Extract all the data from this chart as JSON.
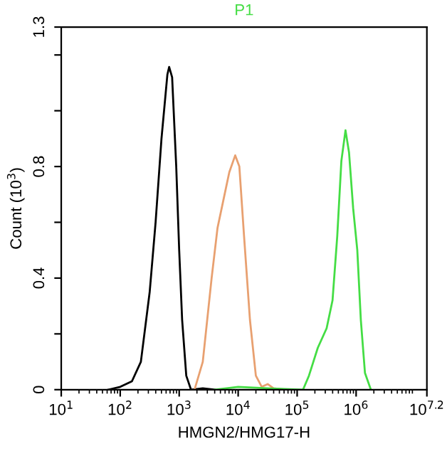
{
  "chart_data": {
    "type": "line",
    "title": "P1",
    "xlabel": "HMGN2/HMG17-H",
    "ylabel": "Count (10$^{3}$)",
    "log": "x",
    "xlim": [
      10,
      15848932
    ],
    "xticks": [
      {
        "value": 10,
        "label": "10$^{1}$"
      },
      {
        "value": 100,
        "label": "10$^{2}$"
      },
      {
        "value": 1000,
        "label": "10$^{3}$"
      },
      {
        "value": 10000,
        "label": "10$^{4}$"
      },
      {
        "value": 100000,
        "label": "10$^{5}$"
      },
      {
        "value": 1000000,
        "label": "10$^{6}$"
      },
      {
        "value": 15848932,
        "label": "10$^{7.2}$"
      }
    ],
    "ylim": [
      0,
      1.3
    ],
    "yticks": [
      0,
      {
        "value": 0.2,
        "label": null
      },
      0.4,
      {
        "value": 0.6,
        "label": null
      },
      0.8,
      {
        "value": 1.0,
        "label": null
      },
      {
        "value": 1.2,
        "label": null
      },
      1.3
    ],
    "grid": false,
    "marker": "none",
    "line_style": "solid",
    "series": [
      {
        "color": "#000000",
        "x": [
          63,
          100,
          158,
          224,
          316,
          398,
          501,
          631,
          676,
          759,
          891,
          1000,
          1122,
          1318,
          1585,
          2512,
          3981
        ],
        "values": [
          0,
          0.01,
          0.03,
          0.1,
          0.35,
          0.6,
          0.9,
          1.13,
          1.157,
          1.12,
          0.8,
          0.5,
          0.25,
          0.05,
          0,
          0.005,
          0
        ]
      },
      {
        "color": "#e8a070",
        "x": [
          1820,
          2512,
          3548,
          4467,
          5623,
          7079,
          8913,
          10471,
          12589,
          15849,
          19953,
          25119,
          31623,
          39811,
          63096
        ],
        "values": [
          0,
          0.1,
          0.4,
          0.58,
          0.68,
          0.78,
          0.84,
          0.8,
          0.55,
          0.25,
          0.05,
          0.01,
          0.02,
          0.005,
          0
        ]
      },
      {
        "color": "#44dd44",
        "x": [
          3981,
          10000,
          31623,
          125893,
          158489,
          223872,
          316228,
          398107,
          478630,
          562341,
          660693,
          758578,
          891251,
          1047129,
          1202264,
          1412538,
          1778279
        ],
        "values": [
          0,
          0.01,
          0.005,
          0,
          0.05,
          0.15,
          0.22,
          0.32,
          0.55,
          0.82,
          0.93,
          0.85,
          0.65,
          0.5,
          0.25,
          0.06,
          0
        ]
      }
    ]
  }
}
